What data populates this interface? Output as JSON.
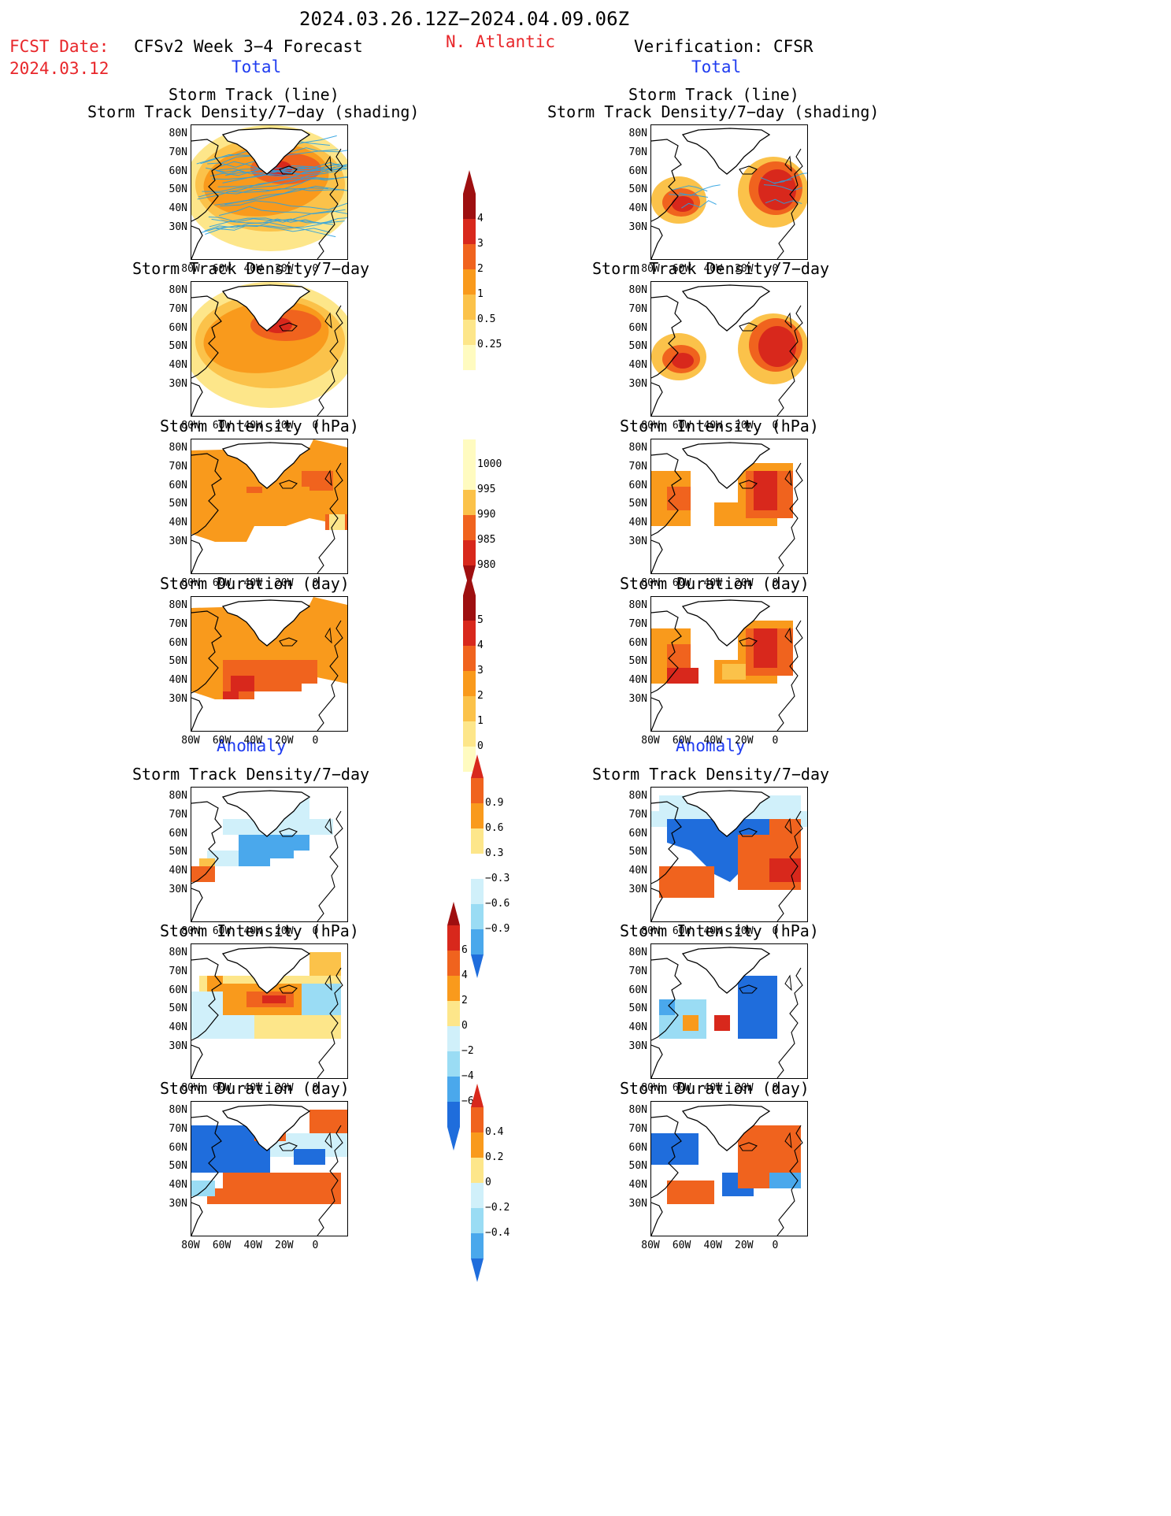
{
  "header": {
    "date_range": "2024.03.26.12Z−2024.04.09.06Z",
    "fcst_label": "FCST Date:",
    "fcst_date": "2024.03.12",
    "left_title": "CFSv2 Week 3−4 Forecast",
    "region": "N. Atlantic",
    "right_title": "Verification: CFSR"
  },
  "sections": {
    "total": "Total",
    "anomaly": "Anomaly"
  },
  "panel_titles": {
    "track_line": "Storm Track (line)",
    "track_shading": "Storm Track Density/7−day (shading)",
    "density": "Storm Track Density/7−day",
    "intensity": "Storm Intensity (hPa)",
    "duration": "Storm Duration (day)"
  },
  "axes": {
    "lat_ticks": [
      "80N",
      "70N",
      "60N",
      "50N",
      "40N",
      "30N"
    ],
    "lon_ticks": [
      "80W",
      "60W",
      "40W",
      "20W",
      "0"
    ]
  },
  "colorbars": {
    "density_total": [
      "4",
      "3",
      "2",
      "1",
      "0.5",
      "0.25"
    ],
    "intensity_total": [
      "1000",
      "995",
      "990",
      "985",
      "980"
    ],
    "duration_total": [
      "5",
      "4",
      "3",
      "2",
      "1",
      "0"
    ],
    "density_anom": [
      "0.9",
      "0.6",
      "0.3",
      "−0.3",
      "−0.6",
      "−0.9"
    ],
    "intensity_anom": [
      "6",
      "4",
      "2",
      "0",
      "−2",
      "−4",
      "−6"
    ],
    "duration_anom": [
      "0.4",
      "0.2",
      "0",
      "−0.2",
      "−0.4"
    ]
  },
  "colors": {
    "title_red": "#e8262a",
    "section_blue": "#1f3cf0",
    "warm": [
      "#fffbc0",
      "#fde68a",
      "#fbc24a",
      "#f99a1c",
      "#f0631e",
      "#d8281c",
      "#9e0f10"
    ],
    "cool": [
      "#d0f0fa",
      "#9adcf4",
      "#4aa8ec",
      "#1f6ddc"
    ],
    "track_line": "#2aa0e0"
  }
}
